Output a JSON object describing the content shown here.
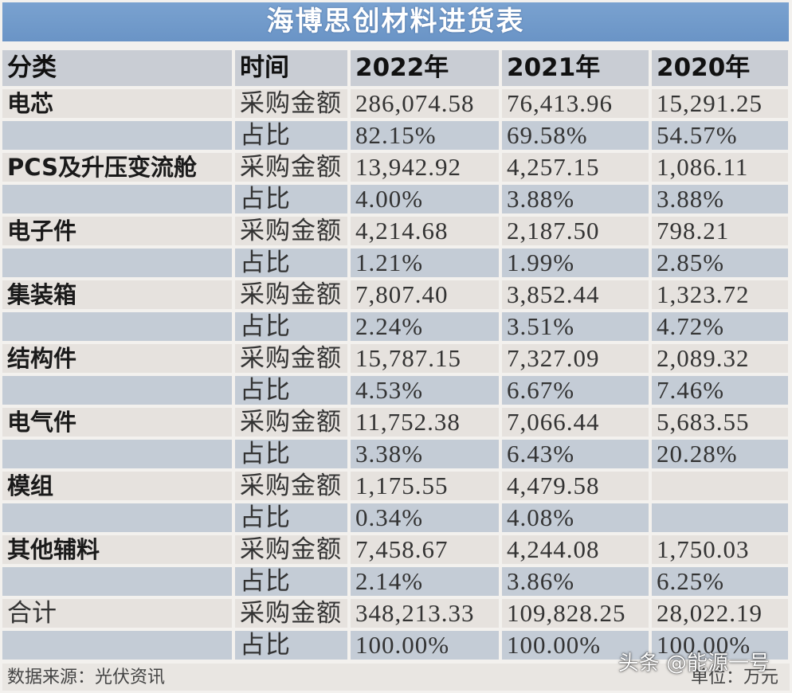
{
  "title": "海博思创材料进货表",
  "header": {
    "category": "分类",
    "time": "时间",
    "years": [
      "2022年",
      "2021年",
      "2020年"
    ]
  },
  "rows": [
    {
      "category": "电芯",
      "metric": "采购金额",
      "values": [
        "286,074.58",
        "76,413.96",
        "15,291.25"
      ],
      "type": "amount"
    },
    {
      "category": "",
      "metric": "占比",
      "values": [
        "82.15%",
        "69.58%",
        "54.57%"
      ],
      "type": "share"
    },
    {
      "category": "PCS及升压变流舱",
      "metric": "采购金额",
      "values": [
        "13,942.92",
        "4,257.15",
        "1,086.11"
      ],
      "type": "amount"
    },
    {
      "category": "",
      "metric": "占比",
      "values": [
        "4.00%",
        "3.88%",
        "3.88%"
      ],
      "type": "share"
    },
    {
      "category": "电子件",
      "metric": "采购金额",
      "values": [
        "4,214.68",
        "2,187.50",
        "798.21"
      ],
      "type": "amount"
    },
    {
      "category": "",
      "metric": "占比",
      "values": [
        "1.21%",
        "1.99%",
        "2.85%"
      ],
      "type": "share"
    },
    {
      "category": "集装箱",
      "metric": "采购金额",
      "values": [
        "7,807.40",
        "3,852.44",
        "1,323.72"
      ],
      "type": "amount"
    },
    {
      "category": "",
      "metric": "占比",
      "values": [
        "2.24%",
        "3.51%",
        "4.72%"
      ],
      "type": "share"
    },
    {
      "category": "结构件",
      "metric": "采购金额",
      "values": [
        "15,787.15",
        "7,327.09",
        "2,089.32"
      ],
      "type": "amount"
    },
    {
      "category": "",
      "metric": "占比",
      "values": [
        "4.53%",
        "6.67%",
        "7.46%"
      ],
      "type": "share"
    },
    {
      "category": "电气件",
      "metric": "采购金额",
      "values": [
        "11,752.38",
        "7,066.44",
        "5,683.55"
      ],
      "type": "amount"
    },
    {
      "category": "",
      "metric": "占比",
      "values": [
        "3.38%",
        "6.43%",
        "20.28%"
      ],
      "type": "share"
    },
    {
      "category": "模组",
      "metric": "采购金额",
      "values": [
        "1,175.55",
        "4,479.58",
        ""
      ],
      "type": "amount"
    },
    {
      "category": "",
      "metric": "占比",
      "values": [
        "0.34%",
        "4.08%",
        ""
      ],
      "type": "share"
    },
    {
      "category": "其他辅料",
      "metric": "采购金额",
      "values": [
        "7,458.67",
        "4,244.08",
        "1,750.03"
      ],
      "type": "amount"
    },
    {
      "category": "",
      "metric": "占比",
      "values": [
        "2.14%",
        "3.86%",
        "6.25%"
      ],
      "type": "share"
    },
    {
      "category": "合计",
      "metric": "采购金额",
      "values": [
        "348,213.33",
        "109,828.25",
        "28,022.19"
      ],
      "type": "amount"
    },
    {
      "category": "",
      "metric": "占比",
      "values": [
        "100.00%",
        "100.00%",
        "100.00%"
      ],
      "type": "share"
    }
  ],
  "footer": {
    "source": "数据来源：光伏资讯",
    "unit": "单位：万元"
  },
  "watermark": "头条 @能源一号",
  "colors": {
    "title_bg": "#6f99c9",
    "header_bg": "#c9cdd4",
    "amount_row_bg": "#e6e2de",
    "share_row_bg": "#c4ccd6"
  }
}
